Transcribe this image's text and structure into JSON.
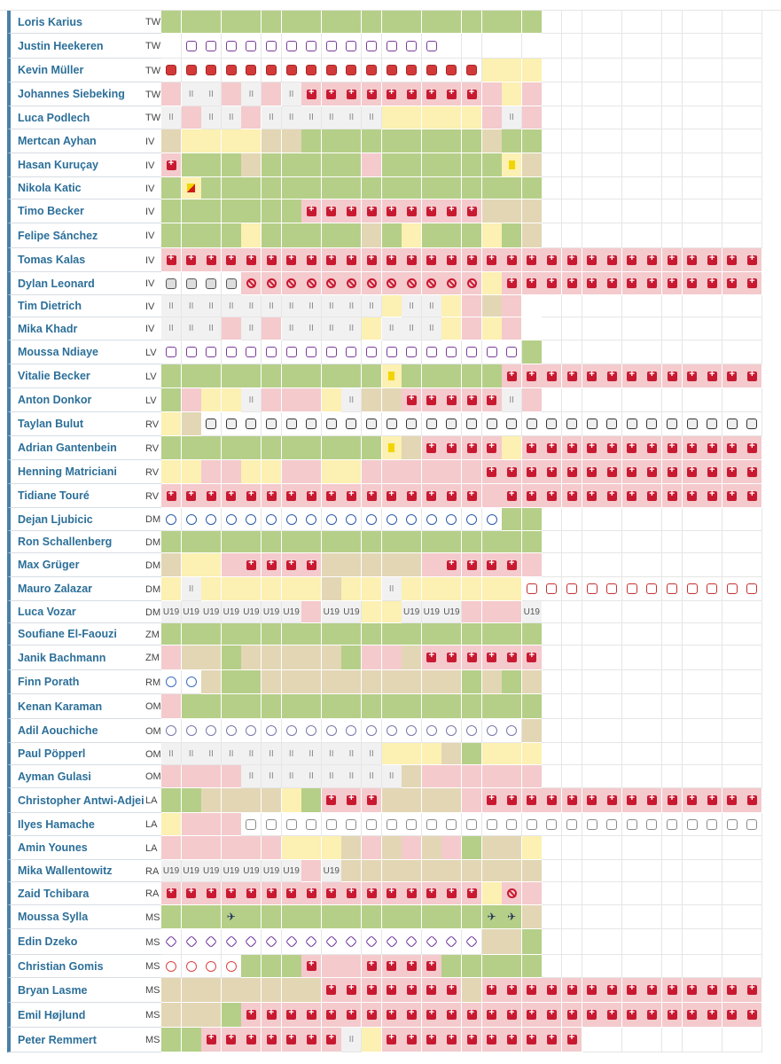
{
  "legend": {
    "g": "#b5cf88",
    "y": "#fcf0b2",
    "p": "#f4cacd",
    "t": "#e3d6b5",
    "inj": "#c81931"
  },
  "players": [
    {
      "name": "Loris Karius",
      "pos": "TW",
      "cells": "ggggggggggggggggggg"
    },
    {
      "name": "Justin Heekeren",
      "pos": "TW",
      "cells": "yyyyyyyyyyyppppp:c-mp,:c-mp,:c-mp,:c-mp,:c-mp,:c-mp,:c-mp,:c-mp,:c-mp,:c-mp,:c-mp,:c-mp,:c-mp,:c-mp"
    },
    {
      "name": "Kevin Müller",
      "pos": "TW",
      "cells": ":c-heid,:c-heid,:c-heid,:c-heid,:c-heid,:c-heid,:c-heid,:c-heid,:c-heid,:c-heid,:c-heid,:c-heid,:c-heid,:c-heid,:c-heid,:c-heid,y,y,y"
    },
    {
      "name": "Johannes Siebeking",
      "pos": "TW",
      "cells": "p,be,be,p,be,p,be,inj,inj,inj,inj,inj,inj,inj,inj,inj,p,y,p"
    },
    {
      "name": "Luca Podlech",
      "pos": "TW",
      "cells": "be,p,be,be,p,be,be,be,be,be,be,y,y,y,y,y,p,be,p"
    },
    {
      "name": "Mertcan Ayhan",
      "pos": "IV",
      "cells": "t,y,y,y,y,t,t,g,g,g,g,g,g,g,g,g,t,g,g"
    },
    {
      "name": "Hasan Kuruçay",
      "pos": "IV",
      "cells": "inj,g,g,g,t,g,g,g,g,g,p,g,g,g,g,g,g,yc,t"
    },
    {
      "name": "Nikola Katic",
      "pos": "IV",
      "cells": "g,yr,g,g,g,g,g,g,g,g,g,g,g,g,g,g,g,g,g"
    },
    {
      "name": "Timo Becker",
      "pos": "IV",
      "cells": "g,g,g,g,g,g,g,inj,inj,inj,inj,inj,inj,inj,inj,inj,t,t,t"
    },
    {
      "name": "Felipe Sánchez",
      "pos": "IV",
      "cells": "g,g,g,g,y,g,g,g,g,g,t,g,y,g,g,g,y,g,t"
    },
    {
      "name": "Tomas Kalas",
      "pos": "IV",
      "cells": "inj,inj,inj,inj,inj,inj,inj,inj,inj,inj,inj,inj,inj,inj,inj,inj,inj,inj,inj,inj,inj,inj,inj,inj,inj,inj,inj,inj,inj,inj,inj,inj,inj,inj,inj,inj,inj,inj,inj"
    },
    {
      "name": "Dylan Leonard",
      "pos": "IV",
      "cells": ":c-kiel,:c-kiel,:c-kiel,:c-kiel,sus,sus,sus,sus,sus,sus,sus,sus,sus,sus,sus,sus,y,inj,inj,inj,inj,inj,inj,inj,inj,inj,inj,inj,inj,inj,inj,inj,inj,inj,inj,inj,inj,inj,inj"
    },
    {
      "name": "Tim Dietrich",
      "pos": "IV",
      "cells": "be,be,be,be,be,be,be,be,be,be,be,y,be,be,y,p,t,p,e"
    },
    {
      "name": "Mika Khadr",
      "pos": "IV",
      "cells": "be,be,be,p,be,p,be,be,be,be,y,be,be,be,y,p,y,p,e"
    },
    {
      "name": "Moussa Ndiaye",
      "pos": "LV",
      "cells": ":c-mp,:c-mp,:c-mp,:c-mp,:c-mp,:c-mp,:c-mp,:c-mp,:c-mp,:c-mp,:c-mp,:c-mp,:c-mp,:c-mp,:c-mp,:c-mp,:c-mp,:c-mp,g"
    },
    {
      "name": "Vitalie Becker",
      "pos": "LV",
      "cells": "g,g,g,g,g,g,g,g,g,g,g,yc,g,g,g,g,g,inj,inj,inj,inj,inj,inj,inj,inj,inj,inj,inj,inj,inj,inj,inj,inj,inj,inj,inj,inj,inj,inj"
    },
    {
      "name": "Anton Donkor",
      "pos": "LV",
      "cells": "g,p,y,y,be,p,p,p,y,be,t,t,inj,inj,inj,inj,inj,be,p"
    },
    {
      "name": "Taylan Bulut",
      "pos": "RV",
      "cells": "y,t,:c-bes,:c-bes,:c-bes,:c-bes,:c-bes,:c-bes,:c-bes,:c-bes,:c-bes,:c-bes,:c-bes,:c-bes,:c-bes,:c-bes,:c-bes,:c-bes,:c-bes,:c-bes,:c-bes,:c-bes,:c-bes,:c-bes,:c-bes,:c-bes,:c-bes,:c-bes,:c-bes,:c-bes,:c-bes,:c-bes,:c-bes,:c-bes,:c-bes,:c-bes,:c-bes,:c-bes,:c-bes"
    },
    {
      "name": "Adrian Gantenbein",
      "pos": "RV",
      "cells": "g,g,g,g,g,g,g,g,g,g,g,yc,t,inj,inj,inj,inj,y,inj,inj,inj,inj,inj,inj,inj,inj,inj,inj,inj,inj,inj,inj,inj,inj,inj,inj,inj,inj,inj"
    },
    {
      "name": "Henning Matriciani",
      "pos": "RV",
      "cells": "y,y,p,p,y,y,p,p,y,y,p,p,p,p,p,p,inj,inj,inj,inj,inj,inj,inj,inj,inj,inj,inj,inj,inj,inj,inj,inj,inj,inj,inj,inj,inj,inj,inj"
    },
    {
      "name": "Tidiane Touré",
      "pos": "RV",
      "cells": "inj,inj,inj,inj,inj,inj,inj,inj,inj,inj,inj,inj,inj,inj,inj,inj,p,inj,inj,inj,inj,inj,inj,inj,inj,inj,inj,inj,inj,inj,inj,inj,inj,inj,inj,inj,inj,inj,inj"
    },
    {
      "name": "Dejan Ljubicic",
      "pos": "DM",
      "cells": ":c-fcb,:c-fcb,:c-fcb,:c-fcb,:c-fcb,:c-fcb,:c-fcb,:c-fcb,:c-fcb,:c-fcb,:c-fcb,:c-fcb,:c-fcb,:c-fcb,:c-fcb,:c-fcb,:c-fcb,g,g"
    },
    {
      "name": "Ron Schallenberg",
      "pos": "DM",
      "cells": "g,g,g,g,g,g,g,g,g,g,g,g,g,g,g,g,g,g,g"
    },
    {
      "name": "Max Grüger",
      "pos": "DM",
      "cells": "t,y,y,p,inj,inj,inj,inj,t,t,t,t,t,p,inj,inj,inj,inj,p"
    },
    {
      "name": "Mauro Zalazar",
      "pos": "DM",
      "cells": "y,be,y,y,y,y,y,y,t,y,y,be,y,y,y,y,y,y,:c-sport,:c-sport,:c-sport,:c-sport,:c-sport,:c-sport,:c-sport,:c-sport,:c-sport,:c-sport,:c-sport,:c-sport,:c-sport,:c-sport,:c-sport,:c-sport,:c-sport,:c-sport,:c-sport,:c-sport,:c-sport"
    },
    {
      "name": "Luca Vozar",
      "pos": "DM",
      "cells": "u19,u19,u19,u19,u19,u19,u19,p,u19,u19,y,y,u19,u19,u19,p,p,p,u19"
    },
    {
      "name": "Soufiane El-Faouzi",
      "pos": "ZM",
      "cells": "g,g,g,g,g,g,g,g,g,g,g,g,g,g,g,g,g,g,g"
    },
    {
      "name": "Janik Bachmann",
      "pos": "ZM",
      "cells": "p,t,t,g,t,t,t,t,t,g,p,p,t,inj,inj,inj,inj,inj,inj"
    },
    {
      "name": "Finn Porath",
      "pos": "RM",
      "cells": ":c-rm,:c-rm,t,g,g,t,t,t,t,t,t,t,t,t,t,g,t,g,t"
    },
    {
      "name": "Kenan Karaman",
      "pos": "OM",
      "cells": "p,g,g,g,g,g,g,g,g,g,g,g,g,g,g,g,g,g,g"
    },
    {
      "name": "Adil Aouchiche",
      "pos": "OM",
      "cells": ":c-ld,:c-ld,:c-ld,:c-ld,:c-ld,:c-ld,:c-ld,:c-ld,:c-ld,:c-ld,:c-ld,:c-ld,:c-ld,:c-ld,:c-ld,:c-ld,:c-ld,:c-ld,t"
    },
    {
      "name": "Paul Pöpperl",
      "pos": "OM",
      "cells": "be,be,be,be,be,be,be,be,be,be,be,y,y,y,t,g,y,y,y"
    },
    {
      "name": "Ayman Gulasi",
      "pos": "OM",
      "cells": "p,p,p,p,be,be,be,be,be,be,be,be,t,p,p,p,p,p,p"
    },
    {
      "name": "Christopher Antwi-Adjei",
      "pos": "LA",
      "cells": "g,g,t,t,t,t,y,g,inj,inj,inj,t,t,t,t,p,inj,inj,inj,inj,inj,inj,inj,inj,inj,inj,inj,inj,inj,inj,inj,inj,inj,inj,inj,inj,inj,inj,inj"
    },
    {
      "name": "Ilyes Hamache",
      "pos": "LA",
      "cells": "y,p,p,p,:c-swan,:c-swan,:c-swan,:c-swan,:c-swan,:c-swan,:c-swan,:c-swan,:c-swan,:c-swan,:c-swan,:c-swan,:c-swan,:c-swan,:c-swan,:c-swan,:c-swan,:c-swan,:c-swan,:c-swan,:c-swan,:c-swan,:c-swan,:c-swan,:c-swan,:c-swan,:c-swan,:c-swan,:c-swan,:c-swan,:c-swan,:c-swan,:c-swan,:c-swan,:c-swan"
    },
    {
      "name": "Amin Younes",
      "pos": "LA",
      "cells": "p,p,p,p,p,p,y,y,y,t,p,t,p,t,p,g,t,t,y"
    },
    {
      "name": "Mika Wallentowitz",
      "pos": "RA",
      "cells": "u19,u19,u19,u19,u19,u19,u19,p,u19,t,t,t,t,t,t,t,t,t,t"
    },
    {
      "name": "Zaid Tchibara",
      "pos": "RA",
      "cells": "inj,inj,inj,inj,inj,inj,inj,inj,inj,inj,inj,inj,inj,inj,inj,inj,y,sus,p"
    },
    {
      "name": "Moussa Sylla",
      "pos": "MS",
      "cells": "g,g,g,plane,g,g,g,g,g,g,g,g,g,g,g,g,plane,plane,t"
    },
    {
      "name": "Edin Dzeko",
      "pos": "MS",
      "cells": ":c-fior,:c-fior,:c-fior,:c-fior,:c-fior,:c-fior,:c-fior,:c-fior,:c-fior,:c-fior,:c-fior,:c-fior,:c-fior,:c-fior,:c-fior,:c-fior,t,t,g"
    },
    {
      "name": "Christian Gomis",
      "pos": "MS",
      "cells": ":c-mu,:c-mu,:c-mu,:c-mu,g,g,g,inj,p,p,inj,inj,inj,inj,g,g,g,g,g"
    },
    {
      "name": "Bryan Lasme",
      "pos": "MS",
      "cells": "t,t,t,t,t,t,t,t,inj,inj,inj,inj,inj,inj,inj,t,inj,inj,inj,inj,inj,inj,inj,inj,inj,inj,inj,inj,inj,inj,inj,inj,inj,inj,inj,inj,inj,inj,inj"
    },
    {
      "name": "Emil Højlund",
      "pos": "MS",
      "cells": "t,t,t,g,inj,inj,inj,inj,inj,inj,inj,inj,inj,inj,inj,inj,inj,inj,inj,inj,inj,inj,inj,inj,inj,inj,inj,inj,inj,inj,inj,inj,inj,inj,inj,inj,inj,inj,inj"
    },
    {
      "name": "Peter Remmert",
      "pos": "MS",
      "cells": "g,g,inj,inj,inj,inj,inj,inj,inj,be,y,inj,inj,inj,inj,inj,inj,inj,inj,inj,inj"
    }
  ],
  "u19_label": "U19",
  "bench_label": "II"
}
